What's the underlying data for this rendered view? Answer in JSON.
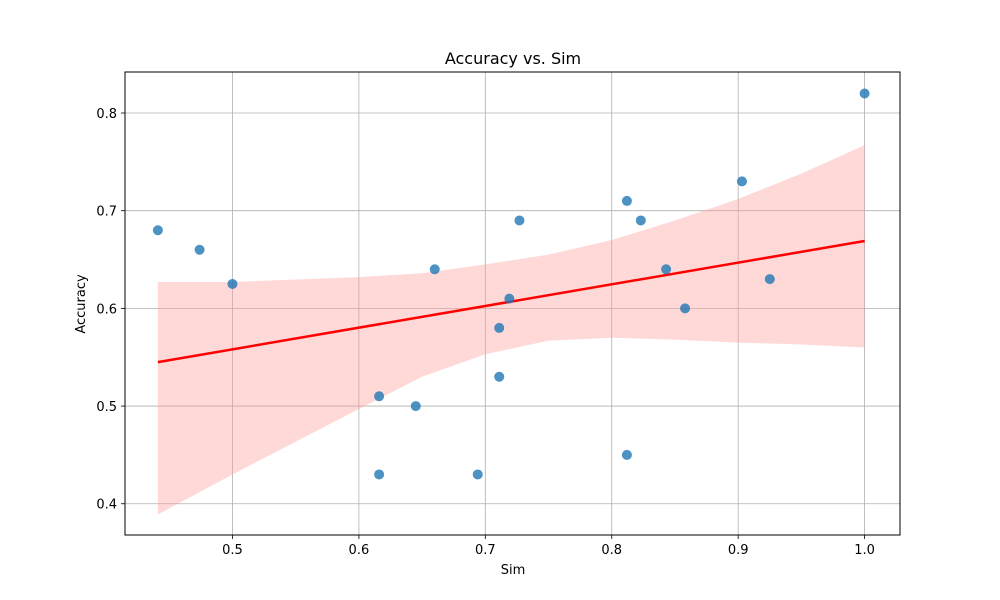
{
  "chart_data": {
    "type": "scatter",
    "title": "Accuracy vs. Sim",
    "xlabel": "Sim",
    "ylabel": "Accuracy",
    "xlim": [
      0.415,
      1.028
    ],
    "ylim": [
      0.368,
      0.842
    ],
    "xticks": [
      0.5,
      0.6,
      0.7,
      0.8,
      0.9,
      1.0
    ],
    "xtick_labels": [
      "0.5",
      "0.6",
      "0.7",
      "0.8",
      "0.9",
      "1.0"
    ],
    "yticks": [
      0.4,
      0.5,
      0.6,
      0.7,
      0.8
    ],
    "ytick_labels": [
      "0.4",
      "0.5",
      "0.6",
      "0.7",
      "0.8"
    ],
    "grid": true,
    "points": [
      {
        "x": 0.441,
        "y": 0.68
      },
      {
        "x": 0.474,
        "y": 0.66
      },
      {
        "x": 0.5,
        "y": 0.625
      },
      {
        "x": 0.616,
        "y": 0.51
      },
      {
        "x": 0.616,
        "y": 0.43
      },
      {
        "x": 0.645,
        "y": 0.5
      },
      {
        "x": 0.66,
        "y": 0.64
      },
      {
        "x": 0.694,
        "y": 0.43
      },
      {
        "x": 0.711,
        "y": 0.58
      },
      {
        "x": 0.711,
        "y": 0.53
      },
      {
        "x": 0.719,
        "y": 0.61
      },
      {
        "x": 0.727,
        "y": 0.69
      },
      {
        "x": 0.812,
        "y": 0.71
      },
      {
        "x": 0.812,
        "y": 0.45
      },
      {
        "x": 0.823,
        "y": 0.69
      },
      {
        "x": 0.843,
        "y": 0.64
      },
      {
        "x": 0.858,
        "y": 0.6
      },
      {
        "x": 0.903,
        "y": 0.73
      },
      {
        "x": 0.925,
        "y": 0.63
      },
      {
        "x": 1.0,
        "y": 0.82
      }
    ],
    "regression": {
      "x": [
        0.441,
        1.0
      ],
      "y": [
        0.545,
        0.669
      ]
    },
    "confidence_band": {
      "x": [
        0.441,
        0.5,
        0.6,
        0.65,
        0.7,
        0.75,
        0.8,
        0.85,
        0.9,
        0.95,
        1.0
      ],
      "upper": [
        0.627,
        0.627,
        0.632,
        0.636,
        0.645,
        0.655,
        0.67,
        0.69,
        0.712,
        0.738,
        0.767
      ],
      "lower": [
        0.389,
        0.43,
        0.497,
        0.53,
        0.553,
        0.567,
        0.57,
        0.568,
        0.565,
        0.563,
        0.56
      ]
    },
    "colors": {
      "point": "#1f77b4",
      "line": "#ff0000",
      "band": "#ff9999",
      "grid": "#b0b0b0"
    }
  }
}
